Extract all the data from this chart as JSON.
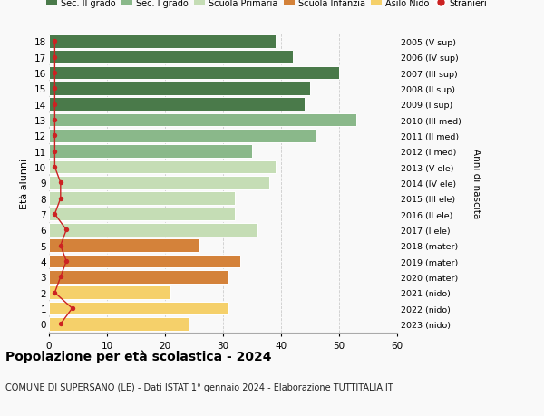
{
  "ages": [
    18,
    17,
    16,
    15,
    14,
    13,
    12,
    11,
    10,
    9,
    8,
    7,
    6,
    5,
    4,
    3,
    2,
    1,
    0
  ],
  "bar_values": [
    39,
    42,
    50,
    45,
    44,
    53,
    46,
    35,
    39,
    38,
    32,
    32,
    36,
    26,
    33,
    31,
    21,
    31,
    24
  ],
  "stranieri_values": [
    1,
    1,
    1,
    1,
    1,
    1,
    1,
    1,
    1,
    2,
    2,
    1,
    3,
    2,
    3,
    2,
    1,
    4,
    2
  ],
  "bar_colors": [
    "#4a7a4a",
    "#4a7a4a",
    "#4a7a4a",
    "#4a7a4a",
    "#4a7a4a",
    "#8ab88a",
    "#8ab88a",
    "#8ab88a",
    "#c5ddb5",
    "#c5ddb5",
    "#c5ddb5",
    "#c5ddb5",
    "#c5ddb5",
    "#d4823a",
    "#d4823a",
    "#d4823a",
    "#f5d06a",
    "#f5d06a",
    "#f5d06a"
  ],
  "right_labels": [
    "2005 (V sup)",
    "2006 (IV sup)",
    "2007 (III sup)",
    "2008 (II sup)",
    "2009 (I sup)",
    "2010 (III med)",
    "2011 (II med)",
    "2012 (I med)",
    "2013 (V ele)",
    "2014 (IV ele)",
    "2015 (III ele)",
    "2016 (II ele)",
    "2017 (I ele)",
    "2018 (mater)",
    "2019 (mater)",
    "2020 (mater)",
    "2021 (nido)",
    "2022 (nido)",
    "2023 (nido)"
  ],
  "legend_labels": [
    "Sec. II grado",
    "Sec. I grado",
    "Scuola Primaria",
    "Scuola Infanzia",
    "Asilo Nido",
    "Stranieri"
  ],
  "legend_colors": [
    "#4a7a4a",
    "#8ab88a",
    "#c5ddb5",
    "#d4823a",
    "#f5d06a",
    "#cc2222"
  ],
  "ylabel": "Età alunni",
  "right_ylabel": "Anni di nascita",
  "title": "Popolazione per età scolastica - 2024",
  "subtitle": "COMUNE DI SUPERSANO (LE) - Dati ISTAT 1° gennaio 2024 - Elaborazione TUTTITALIA.IT",
  "xlim": [
    0,
    60
  ],
  "xticks": [
    0,
    10,
    20,
    30,
    40,
    50,
    60
  ],
  "stranieri_color": "#cc2222",
  "grid_color": "#cccccc",
  "bg_color": "#f9f9f9"
}
